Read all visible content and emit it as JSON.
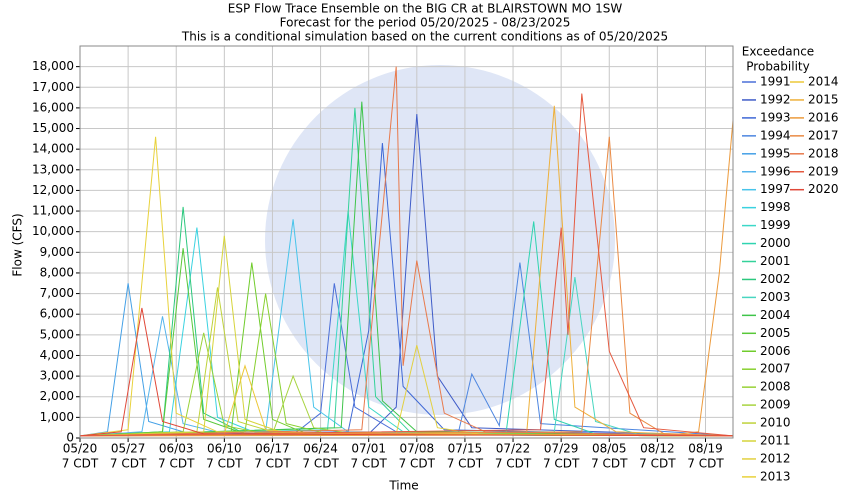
{
  "chart_data": {
    "type": "line",
    "title": [
      "ESP Flow Trace Ensemble on the BIG CR at BLAIRSTOWN MO 1SW",
      "Forecast for the period 05/20/2025 - 08/23/2025",
      "This is a conditional simulation based on the current conditions as of 05/20/2025"
    ],
    "x_label": "Time",
    "y_label": "Flow (CFS)",
    "legend_title": [
      "Exceedance",
      "Probability"
    ],
    "grid": true,
    "xlim": [
      "05/20",
      "08/23"
    ],
    "xticks": [
      {
        "value": "05/20",
        "label": [
          "05/20",
          "7 CDT"
        ]
      },
      {
        "value": "05/27",
        "label": [
          "05/27",
          "7 CDT"
        ]
      },
      {
        "value": "06/03",
        "label": [
          "06/03",
          "7 CDT"
        ]
      },
      {
        "value": "06/10",
        "label": [
          "06/10",
          "7 CDT"
        ]
      },
      {
        "value": "06/17",
        "label": [
          "06/17",
          "7 CDT"
        ]
      },
      {
        "value": "06/24",
        "label": [
          "06/24",
          "7 CDT"
        ]
      },
      {
        "value": "07/01",
        "label": [
          "07/01",
          "7 CDT"
        ]
      },
      {
        "value": "07/08",
        "label": [
          "07/08",
          "7 CDT"
        ]
      },
      {
        "value": "07/15",
        "label": [
          "07/15",
          "7 CDT"
        ]
      },
      {
        "value": "07/22",
        "label": [
          "07/22",
          "7 CDT"
        ]
      },
      {
        "value": "07/29",
        "label": [
          "07/29",
          "7 CDT"
        ]
      },
      {
        "value": "08/05",
        "label": [
          "08/05",
          "7 CDT"
        ]
      },
      {
        "value": "08/12",
        "label": [
          "08/12",
          "7 CDT"
        ]
      },
      {
        "value": "08/19",
        "label": [
          "08/19",
          "7 CDT"
        ]
      }
    ],
    "ylim": [
      0,
      19000
    ],
    "yticks": [
      0,
      {
        "value": 1000,
        "label": "1,000"
      },
      {
        "value": 2000,
        "label": "2,000"
      },
      {
        "value": 3000,
        "label": "3,000"
      },
      {
        "value": 4000,
        "label": "4,000"
      },
      {
        "value": 5000,
        "label": "5,000"
      },
      {
        "value": 6000,
        "label": "6,000"
      },
      {
        "value": 7000,
        "label": "7,000"
      },
      {
        "value": 8000,
        "label": "8,000"
      },
      {
        "value": 9000,
        "label": "9,000"
      },
      {
        "value": 10000,
        "label": "10,000"
      },
      {
        "value": 11000,
        "label": "11,000"
      },
      {
        "value": 12000,
        "label": "12,000"
      },
      {
        "value": 13000,
        "label": "13,000"
      },
      {
        "value": 14000,
        "label": "14,000"
      },
      {
        "value": 15000,
        "label": "15,000"
      },
      {
        "value": 16000,
        "label": "16,000"
      },
      {
        "value": 17000,
        "label": "17,000"
      },
      {
        "value": 18000,
        "label": "18,000"
      }
    ],
    "series": [
      {
        "name": "1991",
        "color": "#4b6fd8",
        "x": [
          "05/20",
          "06/20",
          "06/24",
          "06/26",
          "06/29",
          "07/05",
          "08/23"
        ],
        "values": [
          100,
          150,
          1200,
          7500,
          1500,
          300,
          100
        ]
      },
      {
        "name": "1992",
        "color": "#3f5cc8",
        "x": [
          "05/20",
          "07/01",
          "07/05",
          "07/08",
          "07/11",
          "07/16",
          "08/23"
        ],
        "values": [
          100,
          200,
          1500,
          15700,
          3000,
          500,
          100
        ]
      },
      {
        "name": "1993",
        "color": "#3e68d6",
        "x": [
          "05/20",
          "06/28",
          "07/01",
          "07/03",
          "07/06",
          "07/12",
          "08/23"
        ],
        "values": [
          100,
          300,
          5200,
          14300,
          2500,
          400,
          100
        ]
      },
      {
        "name": "1994",
        "color": "#4d86e0",
        "x": [
          "05/20",
          "07/14",
          "07/16",
          "07/20",
          "07/23",
          "07/26",
          "08/23"
        ],
        "values": [
          100,
          200,
          3100,
          600,
          8500,
          700,
          100
        ]
      },
      {
        "name": "1995",
        "color": "#44a0e6",
        "x": [
          "05/20",
          "05/24",
          "05/27",
          "05/30",
          "06/05",
          "08/23"
        ],
        "values": [
          100,
          300,
          7500,
          800,
          200,
          100
        ]
      },
      {
        "name": "1996",
        "color": "#55b4ec",
        "x": [
          "05/20",
          "05/29",
          "06/01",
          "06/04",
          "06/10",
          "08/23"
        ],
        "values": [
          100,
          300,
          5900,
          700,
          200,
          100
        ]
      },
      {
        "name": "1997",
        "color": "#48c4ea",
        "x": [
          "05/20",
          "06/16",
          "06/20",
          "06/23",
          "06/28",
          "08/23"
        ],
        "values": [
          100,
          300,
          10600,
          1500,
          300,
          100
        ]
      },
      {
        "name": "1998",
        "color": "#3ad2e0",
        "x": [
          "05/20",
          "06/02",
          "06/06",
          "06/09",
          "06/15",
          "08/23"
        ],
        "values": [
          100,
          300,
          10200,
          1000,
          200,
          100
        ]
      },
      {
        "name": "1999",
        "color": "#3cd8c8",
        "x": [
          "05/20",
          "06/25",
          "06/28",
          "07/01",
          "07/06",
          "08/23"
        ],
        "values": [
          100,
          400,
          11000,
          1500,
          300,
          100
        ]
      },
      {
        "name": "2000",
        "color": "#2fd4b0",
        "x": [
          "05/20",
          "07/21",
          "07/25",
          "07/28",
          "08/03",
          "08/23"
        ],
        "values": [
          100,
          300,
          10500,
          900,
          200,
          100
        ]
      },
      {
        "name": "2001",
        "color": "#34d29a",
        "x": [
          "05/20",
          "06/26",
          "06/29",
          "07/02",
          "07/07",
          "08/23"
        ],
        "values": [
          100,
          500,
          16000,
          2000,
          300,
          100
        ]
      },
      {
        "name": "2002",
        "color": "#2cc87e",
        "x": [
          "05/20",
          "06/01",
          "06/04",
          "06/07",
          "06/13",
          "08/23"
        ],
        "values": [
          100,
          300,
          11200,
          1200,
          200,
          100
        ]
      },
      {
        "name": "2003",
        "color": "#48d6c0",
        "x": [
          "05/20",
          "07/28",
          "07/31",
          "08/03",
          "08/09",
          "08/23"
        ],
        "values": [
          100,
          300,
          7800,
          800,
          200,
          100
        ]
      },
      {
        "name": "2004",
        "color": "#3fc44a",
        "x": [
          "05/20",
          "06/27",
          "06/30",
          "07/03",
          "07/08",
          "08/23"
        ],
        "values": [
          100,
          500,
          16300,
          1800,
          300,
          100
        ]
      },
      {
        "name": "2005",
        "color": "#58c838",
        "x": [
          "05/20",
          "06/01",
          "06/04",
          "06/07",
          "06/13",
          "08/23"
        ],
        "values": [
          100,
          300,
          9200,
          900,
          200,
          100
        ]
      },
      {
        "name": "2006",
        "color": "#70cc2c",
        "x": [
          "05/20",
          "06/11",
          "06/14",
          "06/17",
          "06/22",
          "08/23"
        ],
        "values": [
          100,
          300,
          8500,
          900,
          200,
          100
        ]
      },
      {
        "name": "2007",
        "color": "#88d030",
        "x": [
          "05/20",
          "06/13",
          "06/16",
          "06/19",
          "06/25",
          "08/23"
        ],
        "values": [
          100,
          300,
          7000,
          700,
          200,
          100
        ]
      },
      {
        "name": "2008",
        "color": "#98d236",
        "x": [
          "05/20",
          "06/04",
          "06/07",
          "06/10",
          "06/16",
          "08/23"
        ],
        "values": [
          100,
          300,
          5100,
          600,
          200,
          100
        ]
      },
      {
        "name": "2009",
        "color": "#a8d440",
        "x": [
          "05/20",
          "06/17",
          "06/20",
          "06/23",
          "06/29",
          "08/23"
        ],
        "values": [
          100,
          200,
          3000,
          500,
          200,
          100
        ]
      },
      {
        "name": "2010",
        "color": "#bfd23a",
        "x": [
          "05/20",
          "06/06",
          "06/09",
          "06/12",
          "06/18",
          "08/23"
        ],
        "values": [
          100,
          300,
          7300,
          800,
          200,
          100
        ]
      },
      {
        "name": "2011",
        "color": "#d6d43a",
        "x": [
          "05/20",
          "06/07",
          "06/10",
          "06/13",
          "06/19",
          "08/23"
        ],
        "values": [
          100,
          300,
          9800,
          900,
          200,
          100
        ]
      },
      {
        "name": "2012",
        "color": "#e2d040",
        "x": [
          "05/20",
          "07/05",
          "07/08",
          "07/11",
          "07/17",
          "08/23"
        ],
        "values": [
          100,
          200,
          4500,
          500,
          200,
          100
        ]
      },
      {
        "name": "2013",
        "color": "#e8d23c",
        "x": [
          "05/20",
          "05/27",
          "05/31",
          "06/03",
          "06/09",
          "08/23"
        ],
        "values": [
          100,
          400,
          14600,
          1200,
          300,
          100
        ]
      },
      {
        "name": "2014",
        "color": "#ecc838",
        "x": [
          "05/20",
          "06/10",
          "06/13",
          "06/16",
          "06/22",
          "08/23"
        ],
        "values": [
          100,
          200,
          3500,
          400,
          200,
          100
        ]
      },
      {
        "name": "2015",
        "color": "#eeb03a",
        "x": [
          "05/20",
          "07/24",
          "07/28",
          "07/31",
          "08/06",
          "08/23"
        ],
        "values": [
          100,
          300,
          16100,
          1500,
          300,
          100
        ]
      },
      {
        "name": "2016",
        "color": "#ec9a3c",
        "x": [
          "05/20",
          "08/14",
          "08/18",
          "08/21",
          "08/23"
        ],
        "values": [
          100,
          150,
          300,
          8000,
          15400
        ]
      },
      {
        "name": "2017",
        "color": "#ea8a44",
        "x": [
          "05/20",
          "08/01",
          "08/05",
          "08/08",
          "08/13",
          "08/23"
        ],
        "values": [
          100,
          300,
          14600,
          1200,
          200,
          100
        ]
      },
      {
        "name": "2018",
        "color": "#e87a4c",
        "x": [
          "05/20",
          "06/30",
          "07/05",
          "07/06",
          "07/08",
          "07/12",
          "07/18",
          "08/23"
        ],
        "values": [
          100,
          400,
          18000,
          3500,
          8600,
          1200,
          300,
          100
        ]
      },
      {
        "name": "2019",
        "color": "#e55a40",
        "x": [
          "05/20",
          "07/26",
          "07/29",
          "07/30",
          "08/01",
          "08/05",
          "08/10",
          "08/23"
        ],
        "values": [
          100,
          400,
          10200,
          5000,
          16700,
          4200,
          500,
          100
        ]
      },
      {
        "name": "2020",
        "color": "#e04838",
        "x": [
          "05/20",
          "05/26",
          "05/29",
          "06/01",
          "06/07",
          "08/23"
        ],
        "values": [
          100,
          300,
          6300,
          800,
          200,
          100
        ]
      }
    ]
  }
}
